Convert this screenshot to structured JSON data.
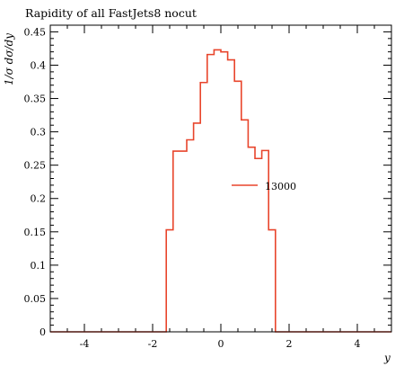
{
  "chart_data": {
    "type": "line",
    "title": "Rapidity of all FastJets8 nocut",
    "xlabel": "y",
    "ylabel": "1/σ dσ/dy",
    "xlim": [
      -5,
      5
    ],
    "ylim": [
      0,
      0.46
    ],
    "x_ticks": [
      -4,
      -2,
      0,
      2,
      4
    ],
    "y_ticks": [
      0,
      0.05,
      0.1,
      0.15,
      0.2,
      0.25,
      0.3,
      0.35,
      0.4,
      0.45
    ],
    "x_tick_labels": [
      "-4",
      "-2",
      "0",
      "2",
      "4"
    ],
    "y_tick_labels": [
      "0",
      "0.05",
      "0.1",
      "0.15",
      "0.2",
      "0.25",
      "0.3",
      "0.35",
      "0.4",
      "0.45"
    ],
    "legend_position": "center-right",
    "series": [
      {
        "name": "13000",
        "color": "#e8452c",
        "style": "step",
        "bin_edges": [
          -5.0,
          -1.6,
          -1.4,
          -1.2,
          -1.0,
          -0.8,
          -0.6,
          -0.4,
          -0.2,
          0.0,
          0.2,
          0.4,
          0.6,
          0.8,
          1.0,
          1.2,
          1.4,
          1.6,
          5.0
        ],
        "values": [
          0.0,
          0.153,
          0.271,
          0.271,
          0.288,
          0.313,
          0.374,
          0.416,
          0.423,
          0.42,
          0.408,
          0.376,
          0.318,
          0.277,
          0.26,
          0.272,
          0.153,
          0.0
        ]
      }
    ]
  }
}
